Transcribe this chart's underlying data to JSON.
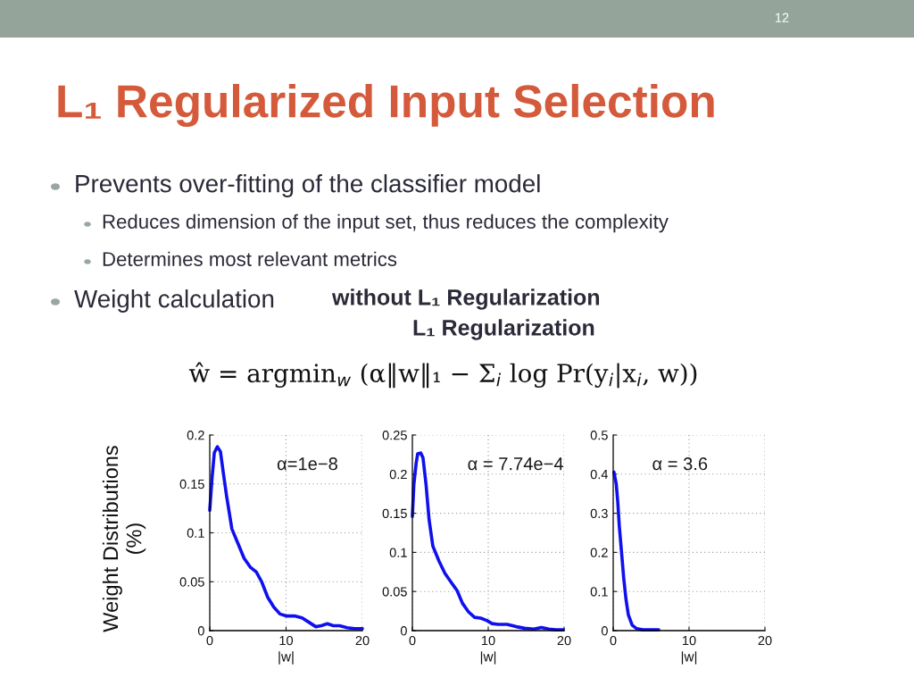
{
  "chart_data": [
    {
      "type": "line",
      "title": "L₁ Regularized Input Selection",
      "ylabel": "Weight Distributions\n(%)",
      "xlabel": "|w|",
      "annotations": [
        "α=1e−8",
        "12",
        "Prevents over-fitting of the classifier model",
        "Reduces dimension of the input set, thus reduces the complexity",
        "Determines most relevant metrics",
        "Weight calculation",
        "without L₁ Regularization",
        "L₁ Regularization",
        "ŵ = argmin$_{w}$ (α‖w‖₁ − Σ$_{i}$ log Pr(y$_{i}$|x$_{i}$, w))"
      ],
      "x": [
        0,
        0.3,
        0.6,
        1.0,
        1.4,
        1.8,
        2.2,
        2.9,
        3.7,
        4.5,
        5.3,
        6.1,
        6.8,
        7.6,
        8.4,
        9.2,
        10.0,
        11.1,
        12.1,
        12.9,
        13.9,
        14.6,
        15.4,
        16.2,
        17.0,
        18.0,
        19.0,
        20.0
      ],
      "series": [
        {
          "color": "#1010ee",
          "values": [
            0.123,
            0.156,
            0.182,
            0.188,
            0.183,
            0.16,
            0.138,
            0.104,
            0.089,
            0.074,
            0.065,
            0.06,
            0.05,
            0.034,
            0.024,
            0.017,
            0.015,
            0.015,
            0.013,
            0.009,
            0.004,
            0.005,
            0.007,
            0.005,
            0.005,
            0.003,
            0.002,
            0.002
          ]
        }
      ],
      "xlim": [
        0,
        20
      ],
      "xticks": [
        0,
        10,
        20
      ],
      "ylim": [
        0,
        0.2
      ],
      "yticks": [
        0,
        0.05,
        0.1,
        0.15,
        0.2
      ],
      "grid": true,
      "line_style": "solid"
    },
    {
      "type": "line",
      "xlabel": "|w|",
      "annotations": [
        "α = 7.74e−4"
      ],
      "x": [
        0,
        0.2,
        0.5,
        0.7,
        1.1,
        1.4,
        1.8,
        2.2,
        2.7,
        3.5,
        4.3,
        5.1,
        5.9,
        6.6,
        7.4,
        8.2,
        9.0,
        9.8,
        10.5,
        11.3,
        12.5,
        13.7,
        14.8,
        16.0,
        17.0,
        18.0,
        18.9,
        19.9
      ],
      "series": [
        {
          "color": "#1010ee",
          "values": [
            0.146,
            0.187,
            0.214,
            0.226,
            0.227,
            0.221,
            0.187,
            0.142,
            0.108,
            0.089,
            0.073,
            0.062,
            0.051,
            0.035,
            0.024,
            0.017,
            0.016,
            0.013,
            0.009,
            0.008,
            0.008,
            0.005,
            0.003,
            0.002,
            0.004,
            0.002,
            0.001,
            0.001
          ]
        }
      ],
      "xlim": [
        0,
        20
      ],
      "xticks": [
        0,
        10,
        20
      ],
      "ylim": [
        0,
        0.25
      ],
      "yticks": [
        0,
        0.05,
        0.1,
        0.15,
        0.2,
        0.25
      ],
      "grid": true,
      "line_style": "solid"
    },
    {
      "type": "line",
      "xlabel": "|w|",
      "annotations": [
        "α = 3.6"
      ],
      "x": [
        0.1,
        0.4,
        0.6,
        0.8,
        1.1,
        1.4,
        1.7,
        2.0,
        2.5,
        3.1,
        3.9,
        5.1,
        6.0
      ],
      "series": [
        {
          "color": "#1010ee",
          "values": [
            0.405,
            0.375,
            0.329,
            0.268,
            0.2,
            0.131,
            0.078,
            0.04,
            0.014,
            0.005,
            0.002,
            0.002,
            0.002
          ]
        }
      ],
      "xlim": [
        0,
        20
      ],
      "xticks": [
        0,
        10,
        20
      ],
      "ylim": [
        0,
        0.5
      ],
      "yticks": [
        0,
        0.1,
        0.2,
        0.3,
        0.4,
        0.5
      ],
      "grid": true,
      "line_style": "solid"
    }
  ]
}
